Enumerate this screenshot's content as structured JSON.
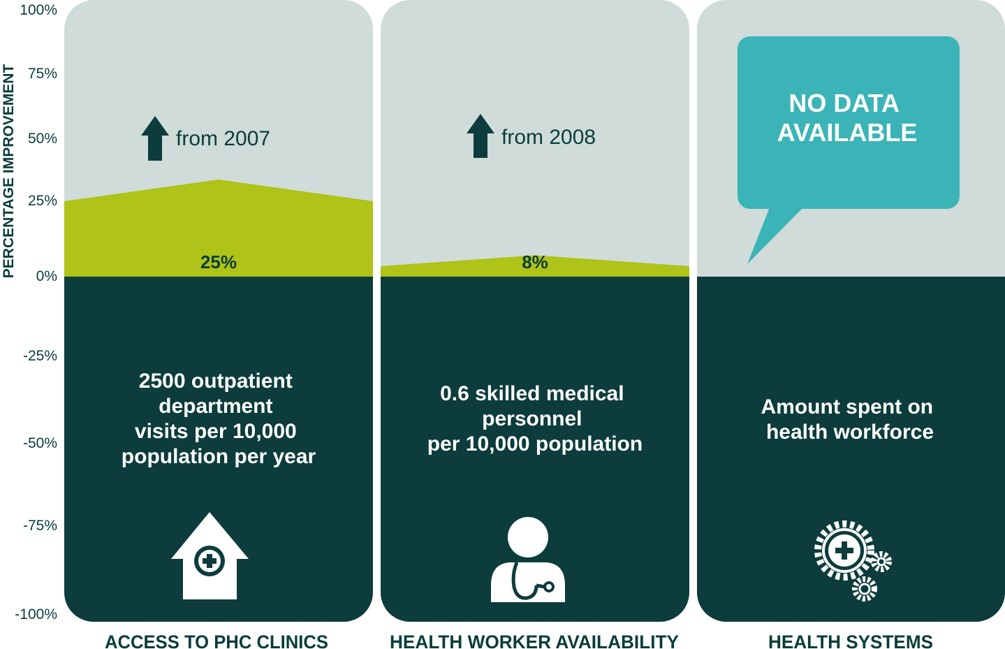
{
  "colors": {
    "upper_bg": "#cfdcd9",
    "lower_bg": "#0c3c3b",
    "fill": "#afc318",
    "text": "#0a3d3a",
    "bubble": "#3bb4b7"
  },
  "chart_data": {
    "type": "area",
    "ylabel": "PERCENTAGE IMPROVEMENT",
    "ylim": [
      -100,
      100
    ],
    "y_ticks": [
      "100%",
      "75%",
      "50%",
      "25%",
      "0%",
      "-25%",
      "-50%",
      "-75%",
      "-100%"
    ],
    "panels": [
      {
        "category": "ACCESS TO PHC CLINICS",
        "value": 25,
        "value_label": "25%",
        "from_label": "from 2007",
        "description": [
          "2500 outpatient",
          "department",
          "visits per 10,000",
          "population per year"
        ],
        "icon": "clinic-house-icon"
      },
      {
        "category": "HEALTH WORKER AVAILABILITY",
        "value": 8,
        "value_label": "8%",
        "from_label": "from 2008",
        "description": [
          "0.6 skilled medical",
          "personnel",
          "per 10,000 population"
        ],
        "icon": "doctor-stethoscope-icon"
      },
      {
        "category": "HEALTH SYSTEMS",
        "value": null,
        "no_data_label": [
          "NO DATA",
          "AVAILABLE"
        ],
        "description": [
          "Amount spent on",
          "health workforce"
        ],
        "icon": "gears-cross-icon"
      }
    ]
  }
}
